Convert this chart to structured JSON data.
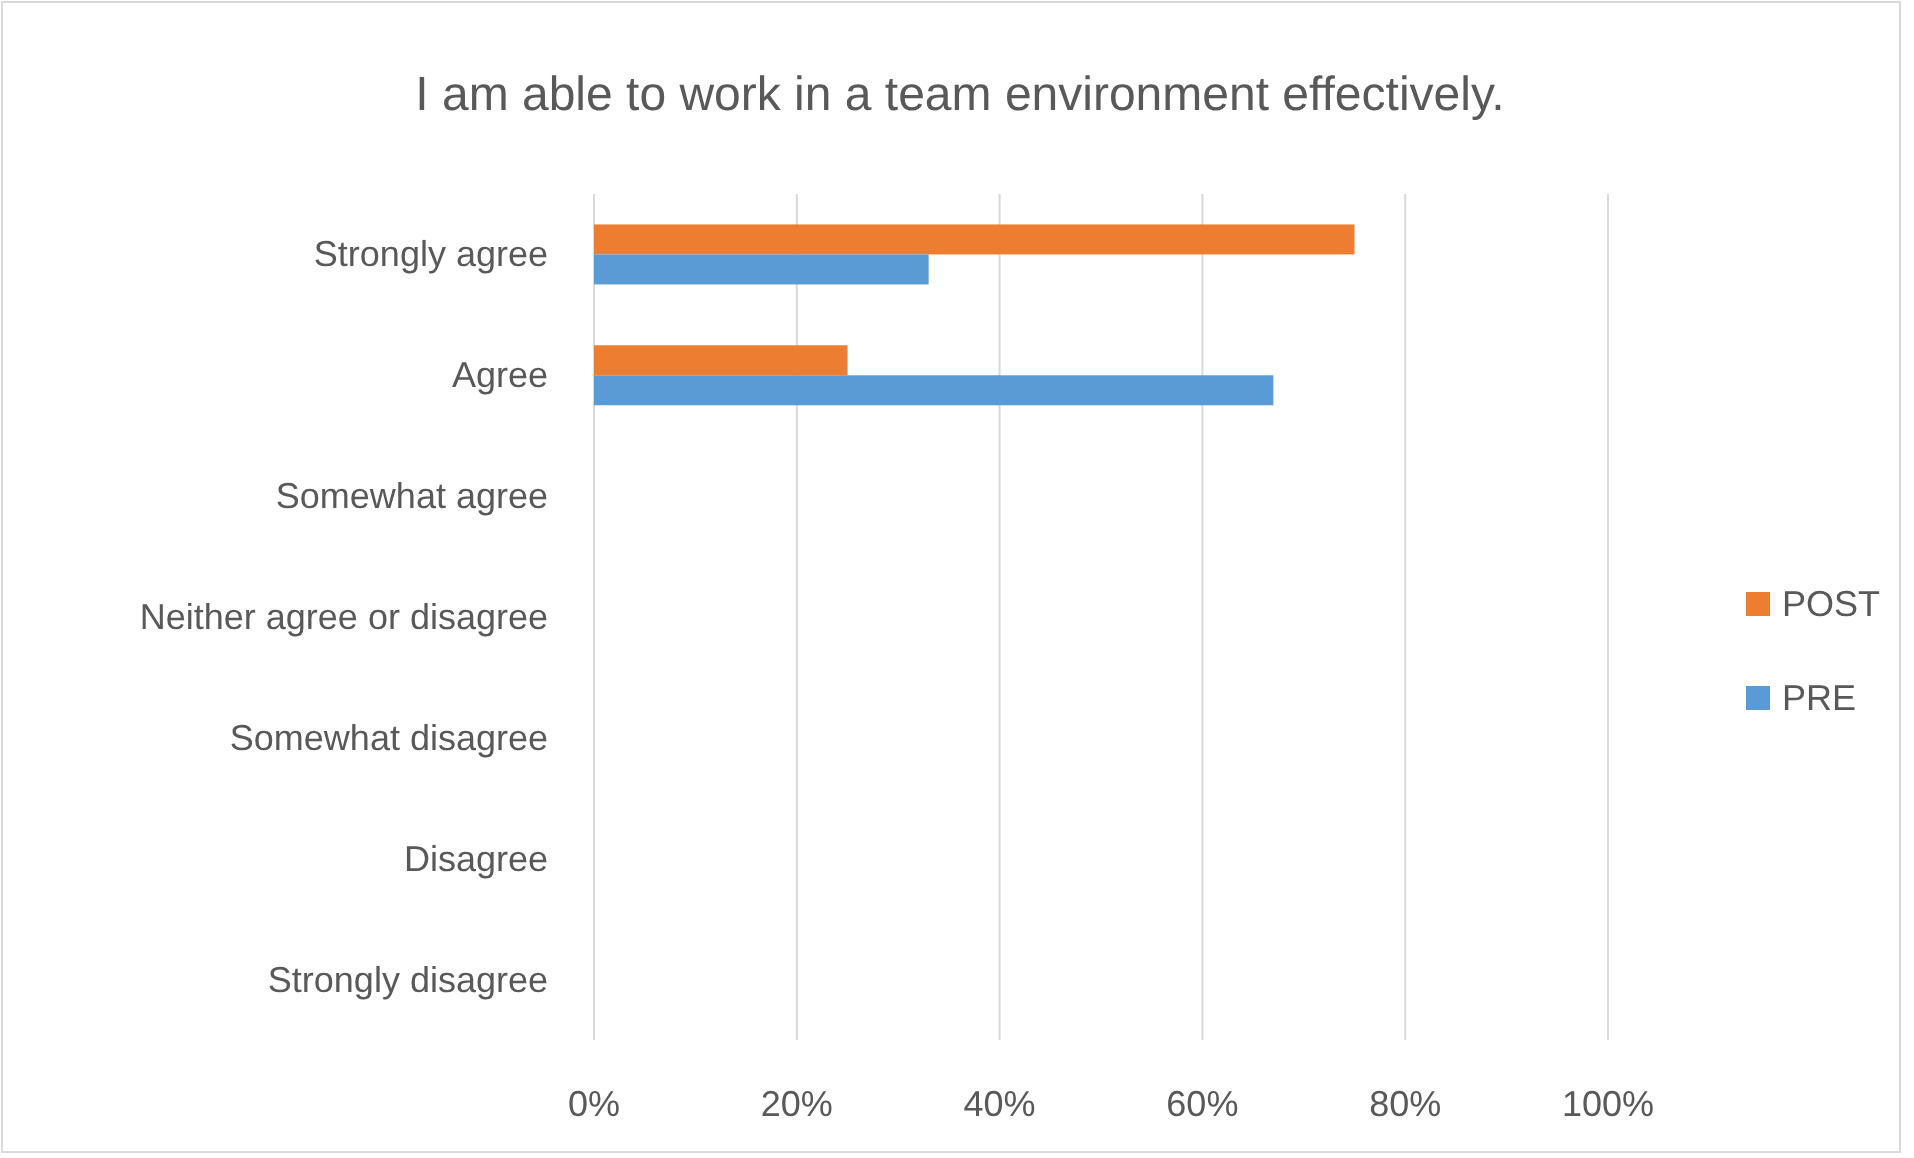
{
  "chart_data": {
    "type": "bar",
    "orientation": "horizontal",
    "title": "I am able to work in a team environment effectively.",
    "categories": [
      "Strongly agree",
      "Agree",
      "Somewhat agree",
      "Neither agree or disagree",
      "Somewhat disagree",
      "Disagree",
      "Strongly disagree"
    ],
    "series": [
      {
        "name": "POST",
        "color": "#ed7d31",
        "values": [
          75,
          25,
          0,
          0,
          0,
          0,
          0
        ]
      },
      {
        "name": "PRE",
        "color": "#5b9bd5",
        "values": [
          33,
          67,
          0,
          0,
          0,
          0,
          0
        ]
      }
    ],
    "xlim": [
      0,
      100
    ],
    "xticks": [
      {
        "value": 0,
        "label": "0%"
      },
      {
        "value": 20,
        "label": "20%"
      },
      {
        "value": 40,
        "label": "40%"
      },
      {
        "value": 60,
        "label": "60%"
      },
      {
        "value": 80,
        "label": "80%"
      },
      {
        "value": 100,
        "label": "100%"
      }
    ],
    "grid": "x",
    "legend": "right"
  }
}
